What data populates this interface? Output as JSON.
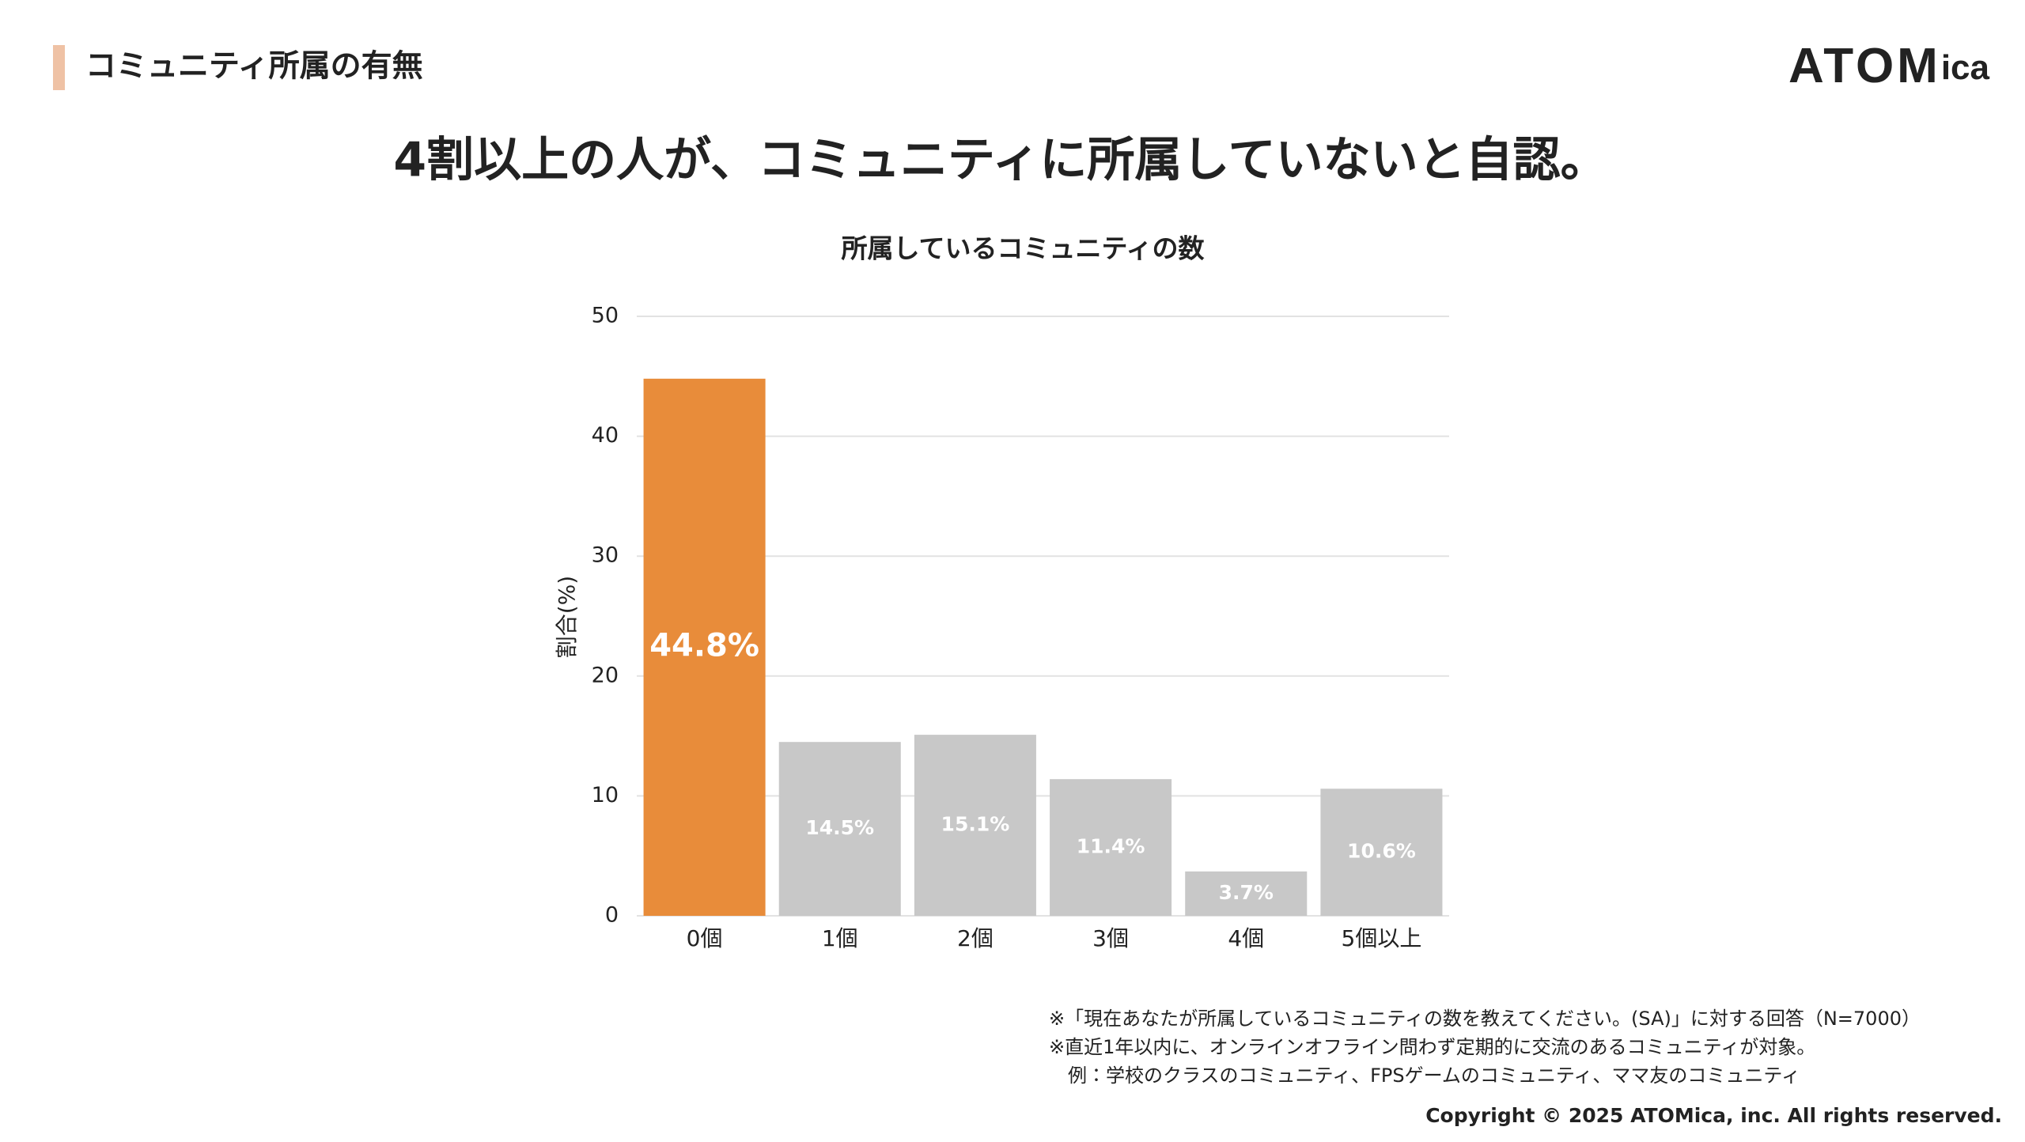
{
  "header": {
    "title": "コミュニティ所属の有無",
    "logo": {
      "main": "ATOM",
      "sub": "ica"
    }
  },
  "headline": "4割以上の人が、コミュニティに所属していないと自認。",
  "chart_data": {
    "type": "bar",
    "title": "所属しているコミュニティの数",
    "y_label": "割合(%)",
    "categories": [
      "0個",
      "1個",
      "2個",
      "3個",
      "4個",
      "5個以上"
    ],
    "values": [
      44.8,
      14.5,
      15.1,
      11.4,
      3.7,
      10.6
    ],
    "value_labels": [
      "44.8%",
      "14.5%",
      "15.1%",
      "11.4%",
      "3.7%",
      "10.6%"
    ],
    "colors": [
      "#e88c3a",
      "#c8c8c8",
      "#c8c8c8",
      "#c8c8c8",
      "#c8c8c8",
      "#c8c8c8"
    ],
    "ylim": [
      0,
      50
    ],
    "yticks": [
      0,
      10,
      20,
      30,
      40,
      50
    ],
    "grid": true
  },
  "footnotes": [
    "※「現在あなたが所属しているコミュニティの数を教えてください。(SA)」に対する回答（N=7000）",
    "※直近1年以内に、オンラインオフライン問わず定期的に交流のあるコミュニティが対象。",
    "例：学校のクラスのコミュニティ、FPSゲームのコミュニティ、ママ友のコミュニティ"
  ],
  "copyright": "Copyright © 2025 ATOMica, inc. All rights reserved."
}
